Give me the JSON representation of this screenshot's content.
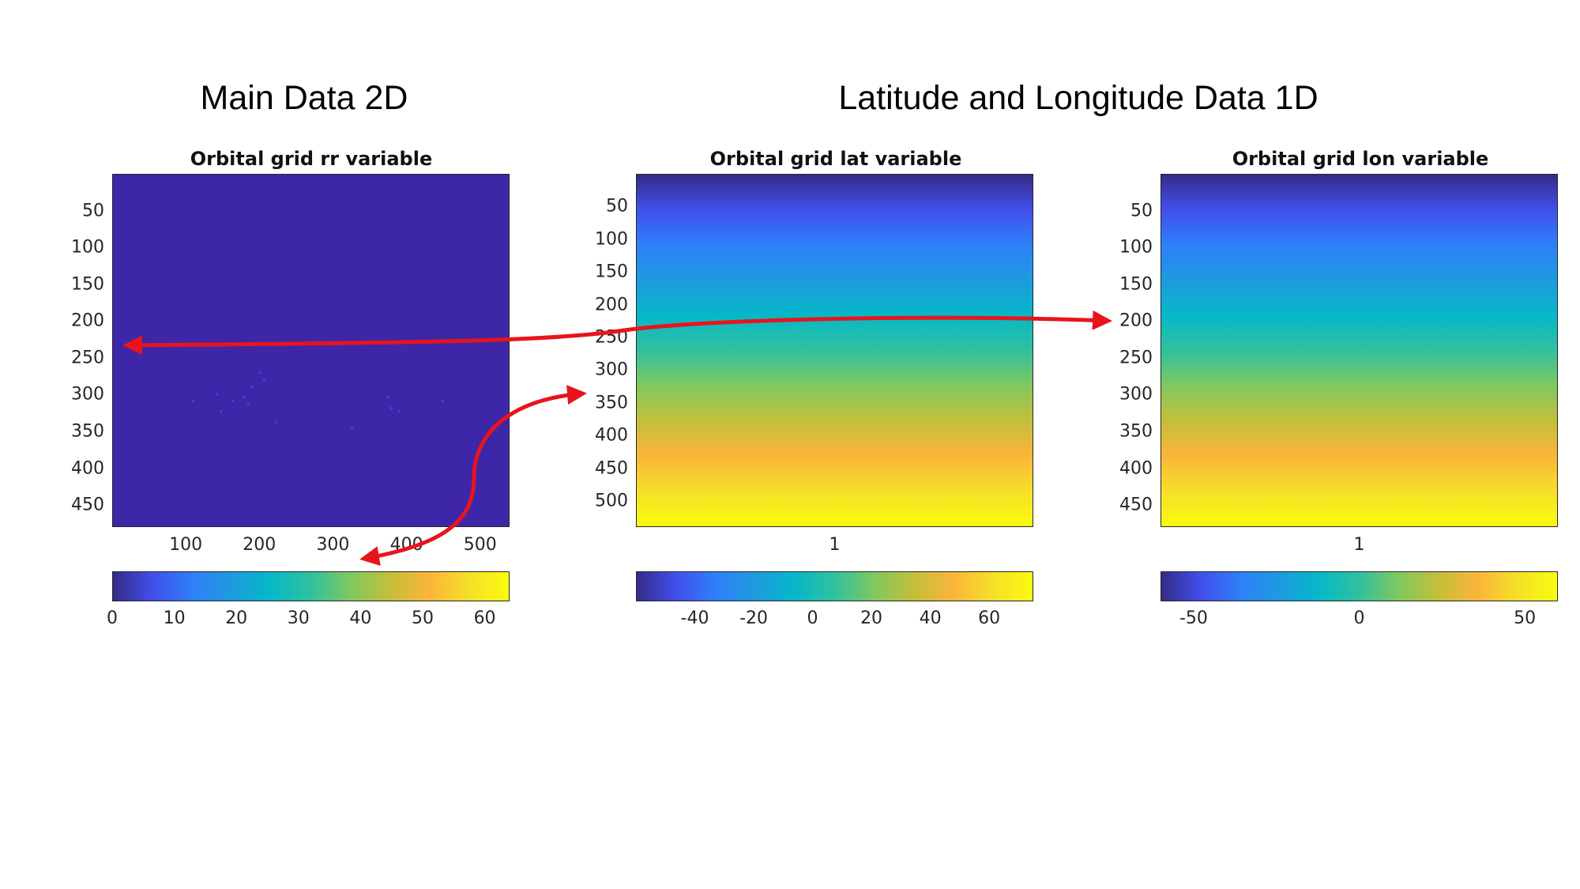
{
  "headings": {
    "left": "Main Data 2D",
    "right": "Latitude and Longitude Data 1D"
  },
  "colors": {
    "parula": [
      "#352a87",
      "#4150ec",
      "#2f7ff8",
      "#1d9bdf",
      "#06b8c8",
      "#30c19e",
      "#80c860",
      "#c4bf3a",
      "#fbb53a",
      "#f5e029",
      "#f9fb0e"
    ],
    "arrow": "#e8141c",
    "axis": "#262626"
  },
  "chart_data": [
    {
      "type": "heatmap",
      "title": "Orbital grid rr variable",
      "xlim": [
        0,
        540
      ],
      "ylim": [
        480,
        0
      ],
      "x_ticks": [
        "100",
        "200",
        "300",
        "400",
        "500"
      ],
      "y_ticks": [
        "50",
        "100",
        "150",
        "200",
        "250",
        "300",
        "350",
        "400",
        "450"
      ],
      "colorbar": {
        "range": [
          0,
          64
        ],
        "ticks": [
          "0",
          "10",
          "20",
          "30",
          "40",
          "50",
          "60"
        ]
      },
      "values_note": "field near 0 everywhere with sparse weak rain pixels"
    },
    {
      "type": "heatmap",
      "title": "Orbital grid lat variable",
      "xlim": [
        0.5,
        1.5
      ],
      "ylim": [
        540,
        0
      ],
      "x_ticks": [
        "1"
      ],
      "y_ticks": [
        "50",
        "100",
        "150",
        "200",
        "250",
        "300",
        "350",
        "400",
        "450",
        "500"
      ],
      "colorbar": {
        "range": [
          -60,
          75
        ],
        "ticks": [
          "-40",
          "-20",
          "0",
          "20",
          "40",
          "60"
        ]
      }
    },
    {
      "type": "heatmap",
      "title": "Orbital grid lon variable",
      "xlim": [
        0.5,
        1.5
      ],
      "ylim": [
        480,
        0
      ],
      "x_ticks": [
        "1"
      ],
      "y_ticks": [
        "50",
        "100",
        "150",
        "200",
        "250",
        "300",
        "350",
        "400",
        "450"
      ],
      "colorbar": {
        "range": [
          -60,
          60
        ],
        "ticks": [
          "-50",
          "0",
          "50"
        ]
      }
    }
  ]
}
